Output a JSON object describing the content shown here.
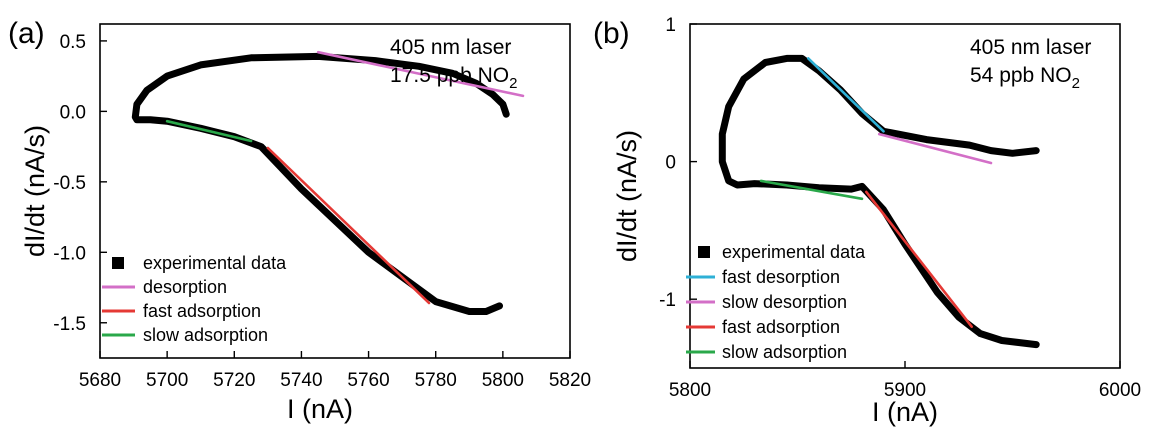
{
  "chart_data": [
    {
      "type": "line",
      "panel_label": "(a)",
      "xlabel": "I (nA)",
      "ylabel": "dI/dt (nA/s)",
      "xlim": [
        5680,
        5820
      ],
      "ylim": [
        -1.75,
        0.62
      ],
      "xticks": [
        5680,
        5700,
        5720,
        5740,
        5760,
        5780,
        5800,
        5820
      ],
      "yticks": [
        0.5,
        0.0,
        -0.5,
        -1.0,
        -1.5
      ],
      "ytick_labels": [
        "0.5",
        "0.0",
        "-0.5",
        "-1.0",
        "-1.5"
      ],
      "annotation": {
        "line1": "405 nm laser",
        "line2_main": "17.5 ppb NO",
        "line2_sub": "2"
      },
      "legend": {
        "position": "bottom-left"
      },
      "series": [
        {
          "name": "experimental data",
          "color": "#000000",
          "style": "thick",
          "x": [
            5801,
            5800,
            5797,
            5792,
            5785,
            5775,
            5762,
            5745,
            5725,
            5710,
            5700,
            5694,
            5691,
            5690.5,
            5691,
            5695,
            5700,
            5710,
            5720,
            5728,
            5740,
            5760,
            5780,
            5790,
            5795,
            5799
          ],
          "y": [
            -0.02,
            0.05,
            0.12,
            0.2,
            0.27,
            0.32,
            0.36,
            0.39,
            0.38,
            0.33,
            0.25,
            0.15,
            0.05,
            -0.04,
            -0.06,
            -0.06,
            -0.07,
            -0.12,
            -0.18,
            -0.25,
            -0.55,
            -1.0,
            -1.35,
            -1.42,
            -1.42,
            -1.38
          ]
        },
        {
          "name": "desorption",
          "color": "#d36fc7",
          "style": "fit",
          "x": [
            5745,
            5806
          ],
          "y": [
            0.42,
            0.11
          ]
        },
        {
          "name": "fast adsorption",
          "color": "#e53935",
          "style": "fit",
          "x": [
            5730,
            5778
          ],
          "y": [
            -0.26,
            -1.36
          ]
        },
        {
          "name": "slow adsorption",
          "color": "#2aa84a",
          "style": "fit",
          "x": [
            5700,
            5725
          ],
          "y": [
            -0.07,
            -0.21
          ]
        }
      ]
    },
    {
      "type": "line",
      "panel_label": "(b)",
      "xlabel": "I (nA)",
      "ylabel": "dI/dt (nA/s)",
      "xlim": [
        5800,
        6000
      ],
      "ylim": [
        -1.5,
        1.0
      ],
      "xticks": [
        5800,
        5900,
        6000
      ],
      "yticks": [
        1,
        0,
        -1
      ],
      "ytick_labels": [
        "1",
        "0",
        "-1"
      ],
      "annotation": {
        "line1": "405 nm laser",
        "line2_main": "54 ppb NO",
        "line2_sub": "2"
      },
      "legend": {
        "position": "bottom-left"
      },
      "series": [
        {
          "name": "experimental data",
          "color": "#000000",
          "style": "thick",
          "x": [
            5961,
            5950,
            5940,
            5930,
            5910,
            5890,
            5880,
            5870,
            5860,
            5852,
            5845,
            5835,
            5825,
            5818,
            5815,
            5815,
            5818,
            5822,
            5830,
            5845,
            5860,
            5875,
            5880,
            5890,
            5900,
            5915,
            5925,
            5935,
            5945,
            5961
          ],
          "y": [
            0.08,
            0.06,
            0.08,
            0.12,
            0.16,
            0.22,
            0.35,
            0.52,
            0.66,
            0.75,
            0.75,
            0.72,
            0.6,
            0.4,
            0.2,
            0.0,
            -0.14,
            -0.17,
            -0.16,
            -0.17,
            -0.19,
            -0.2,
            -0.18,
            -0.35,
            -0.6,
            -0.95,
            -1.13,
            -1.25,
            -1.3,
            -1.33
          ]
        },
        {
          "name": "fast desorption",
          "color": "#2eb0d6",
          "style": "fit",
          "x": [
            5855,
            5890
          ],
          "y": [
            0.75,
            0.22
          ]
        },
        {
          "name": "slow desorption",
          "color": "#d36fc7",
          "style": "fit",
          "x": [
            5888,
            5940
          ],
          "y": [
            0.2,
            -0.01
          ]
        },
        {
          "name": "fast adsorption",
          "color": "#e53935",
          "style": "fit",
          "x": [
            5882,
            5931
          ],
          "y": [
            -0.22,
            -1.2
          ]
        },
        {
          "name": "slow adsorption",
          "color": "#2aa84a",
          "style": "fit",
          "x": [
            5833,
            5880
          ],
          "y": [
            -0.14,
            -0.27
          ]
        }
      ]
    }
  ]
}
